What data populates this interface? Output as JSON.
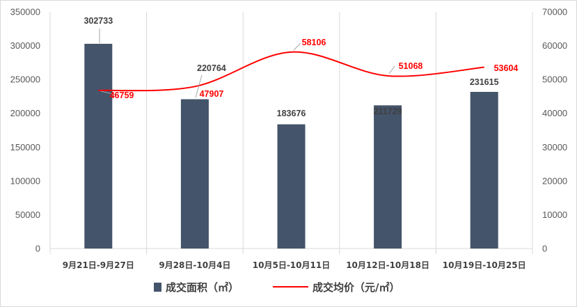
{
  "chart_data": {
    "type": "bar",
    "categories": [
      "9月21日-9月27日",
      "9月28日-10月4日",
      "10月5日-10月11日",
      "10月12日-10月18日",
      "10月19日-10月25日"
    ],
    "series": [
      {
        "name": "成交面积（㎡）",
        "type": "bar",
        "axis": "left",
        "values": [
          302733,
          220764,
          183676,
          211729,
          231615
        ],
        "color": "#44546a"
      },
      {
        "name": "成交均价（元/㎡）",
        "type": "line",
        "axis": "right",
        "smooth": true,
        "values": [
          46759,
          47907,
          58106,
          51068,
          53604
        ],
        "color": "#ff0000"
      }
    ],
    "y_left": {
      "ylim": [
        0,
        350000
      ],
      "ticks": [
        "0",
        "50000",
        "100000",
        "150000",
        "200000",
        "250000",
        "300000",
        "350000"
      ]
    },
    "y_right": {
      "ylim": [
        0,
        70000
      ],
      "ticks": [
        "0",
        "10000",
        "20000",
        "30000",
        "40000",
        "50000",
        "60000",
        "70000"
      ]
    },
    "grid": "vertical-between-categories",
    "legend": {
      "position": "bottom",
      "items": [
        "成交面积（㎡）",
        "成交均价（元/㎡）"
      ]
    }
  }
}
